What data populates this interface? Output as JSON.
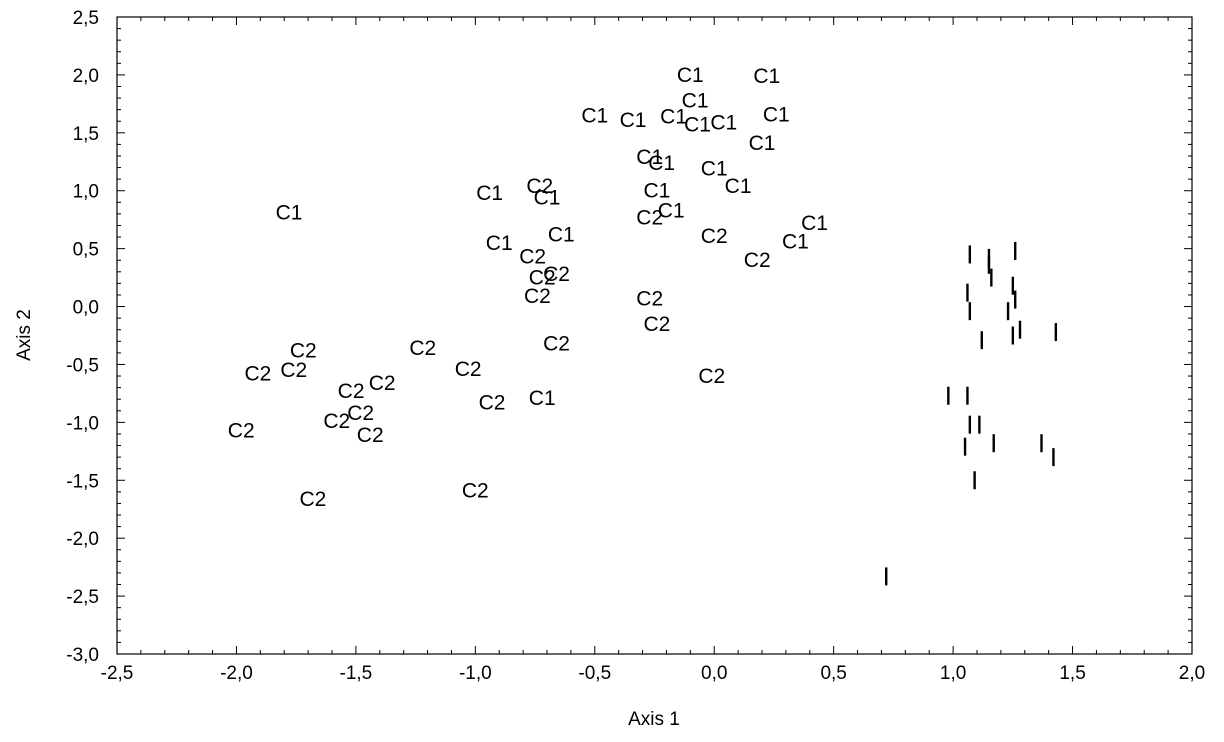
{
  "chart_data": {
    "type": "scatter",
    "title": "",
    "xlabel": "Axis 1",
    "ylabel": "Axis 2",
    "xlim": [
      -2.5,
      2.0
    ],
    "ylim": [
      -3.0,
      2.5
    ],
    "grid": false,
    "x_ticks": [
      -2.5,
      -2.0,
      -1.5,
      -1.0,
      -0.5,
      0.0,
      0.5,
      1.0,
      1.5,
      2.0
    ],
    "y_ticks": [
      -3.0,
      -2.5,
      -2.0,
      -1.5,
      -1.0,
      -0.5,
      0.0,
      0.5,
      1.0,
      1.5,
      2.0,
      2.5
    ],
    "x_tick_labels": [
      "-2,5",
      "-2,0",
      "-1,5",
      "-1,0",
      "-0,5",
      "0,0",
      "0,5",
      "1,0",
      "1,5",
      "2,0"
    ],
    "y_tick_labels": [
      "-3,0",
      "-2,5",
      "-2,0",
      "-1,5",
      "-1,0",
      "-0,5",
      "0,0",
      "0,5",
      "1,0",
      "1,5",
      "2,0",
      "2,5"
    ],
    "points": [
      {
        "label": "C1",
        "x": -1.78,
        "y": 0.81
      },
      {
        "label": "C1",
        "x": -0.94,
        "y": 0.98
      },
      {
        "label": "C1",
        "x": -0.9,
        "y": 0.55
      },
      {
        "label": "C1",
        "x": -0.7,
        "y": 0.94
      },
      {
        "label": "C1",
        "x": -0.64,
        "y": 0.62
      },
      {
        "label": "C1",
        "x": -0.72,
        "y": -0.79
      },
      {
        "label": "C1",
        "x": -0.5,
        "y": 1.65
      },
      {
        "label": "C1",
        "x": -0.34,
        "y": 1.61
      },
      {
        "label": "C1",
        "x": -0.27,
        "y": 1.29
      },
      {
        "label": "C1",
        "x": -0.22,
        "y": 1.24
      },
      {
        "label": "C1",
        "x": -0.24,
        "y": 1.0
      },
      {
        "label": "C1",
        "x": -0.18,
        "y": 0.83
      },
      {
        "label": "C1",
        "x": -0.1,
        "y": 2.0
      },
      {
        "label": "C1",
        "x": -0.17,
        "y": 1.64
      },
      {
        "label": "C1",
        "x": -0.08,
        "y": 1.78
      },
      {
        "label": "C1",
        "x": -0.07,
        "y": 1.57
      },
      {
        "label": "C1",
        "x": 0.04,
        "y": 1.59
      },
      {
        "label": "C1",
        "x": 0.0,
        "y": 1.19
      },
      {
        "label": "C1",
        "x": 0.1,
        "y": 1.04
      },
      {
        "label": "C1",
        "x": 0.22,
        "y": 1.99
      },
      {
        "label": "C1",
        "x": 0.26,
        "y": 1.66
      },
      {
        "label": "C1",
        "x": 0.2,
        "y": 1.41
      },
      {
        "label": "C1",
        "x": 0.42,
        "y": 0.72
      },
      {
        "label": "C1",
        "x": 0.34,
        "y": 0.56
      },
      {
        "label": "C2",
        "x": -0.73,
        "y": 1.04
      },
      {
        "label": "C2",
        "x": -0.76,
        "y": 0.43
      },
      {
        "label": "C2",
        "x": -0.72,
        "y": 0.25
      },
      {
        "label": "C2",
        "x": -0.66,
        "y": 0.28
      },
      {
        "label": "C2",
        "x": -0.74,
        "y": 0.09
      },
      {
        "label": "C2",
        "x": -0.66,
        "y": -0.32
      },
      {
        "label": "C2",
        "x": -0.27,
        "y": 0.77
      },
      {
        "label": "C2",
        "x": -0.27,
        "y": 0.07
      },
      {
        "label": "C2",
        "x": -0.24,
        "y": -0.15
      },
      {
        "label": "C2",
        "x": 0.0,
        "y": 0.61
      },
      {
        "label": "C2",
        "x": 0.18,
        "y": 0.4
      },
      {
        "label": "C2",
        "x": -0.01,
        "y": -0.6
      },
      {
        "label": "C2",
        "x": -1.72,
        "y": -0.38
      },
      {
        "label": "C2",
        "x": -1.76,
        "y": -0.55
      },
      {
        "label": "C2",
        "x": -1.91,
        "y": -0.58
      },
      {
        "label": "C2",
        "x": -1.98,
        "y": -1.07
      },
      {
        "label": "C2",
        "x": -1.52,
        "y": -0.73
      },
      {
        "label": "C2",
        "x": -1.39,
        "y": -0.66
      },
      {
        "label": "C2",
        "x": -1.48,
        "y": -0.92
      },
      {
        "label": "C2",
        "x": -1.58,
        "y": -0.99
      },
      {
        "label": "C2",
        "x": -1.44,
        "y": -1.11
      },
      {
        "label": "C2",
        "x": -1.22,
        "y": -0.36
      },
      {
        "label": "C2",
        "x": -1.03,
        "y": -0.54
      },
      {
        "label": "C2",
        "x": -0.93,
        "y": -0.83
      },
      {
        "label": "C2",
        "x": -1.68,
        "y": -1.66
      },
      {
        "label": "C2",
        "x": -1.0,
        "y": -1.59
      },
      {
        "label": "I",
        "x": 1.07,
        "y": 0.45
      },
      {
        "label": "I",
        "x": 1.15,
        "y": 0.42
      },
      {
        "label": "I",
        "x": 1.15,
        "y": 0.36
      },
      {
        "label": "I",
        "x": 1.26,
        "y": 0.48
      },
      {
        "label": "I",
        "x": 1.16,
        "y": 0.25
      },
      {
        "label": "I",
        "x": 1.25,
        "y": 0.18
      },
      {
        "label": "I",
        "x": 1.06,
        "y": 0.12
      },
      {
        "label": "I",
        "x": 1.07,
        "y": -0.04
      },
      {
        "label": "I",
        "x": 1.26,
        "y": 0.06
      },
      {
        "label": "I",
        "x": 1.23,
        "y": -0.04
      },
      {
        "label": "I",
        "x": 1.28,
        "y": -0.2
      },
      {
        "label": "I",
        "x": 1.25,
        "y": -0.25
      },
      {
        "label": "I",
        "x": 1.43,
        "y": -0.22
      },
      {
        "label": "I",
        "x": 1.12,
        "y": -0.29
      },
      {
        "label": "I",
        "x": 0.98,
        "y": -0.77
      },
      {
        "label": "I",
        "x": 1.06,
        "y": -0.77
      },
      {
        "label": "I",
        "x": 1.07,
        "y": -1.02
      },
      {
        "label": "I",
        "x": 1.11,
        "y": -1.02
      },
      {
        "label": "I",
        "x": 1.05,
        "y": -1.21
      },
      {
        "label": "I",
        "x": 1.17,
        "y": -1.18
      },
      {
        "label": "I",
        "x": 1.37,
        "y": -1.18
      },
      {
        "label": "I",
        "x": 1.42,
        "y": -1.3
      },
      {
        "label": "I",
        "x": 1.09,
        "y": -1.5
      },
      {
        "label": "I",
        "x": 0.72,
        "y": -2.33
      }
    ]
  }
}
